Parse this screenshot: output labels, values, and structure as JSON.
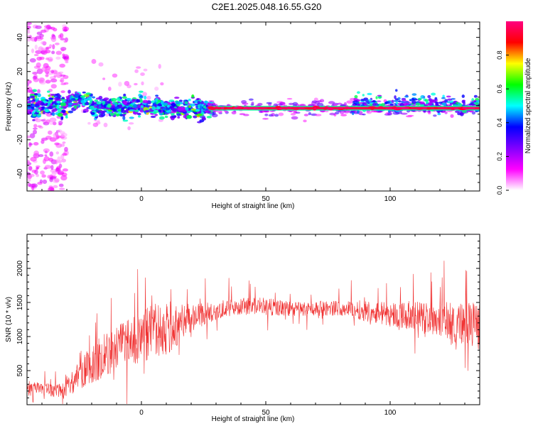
{
  "figure": {
    "title": "C2E1.2025.048.16.55.G20"
  },
  "colors": {
    "snr_line": "#f03030",
    "axes": "#000000",
    "background": "#ffffff"
  },
  "chart_data": [
    {
      "type": "heatmap",
      "xlabel": "Height of straight line (km)",
      "ylabel": "Frequency (Hz)",
      "xlim": [
        -46,
        136
      ],
      "ylim": [
        -50,
        49
      ],
      "xticks": [
        0,
        50,
        100
      ],
      "yticks": [
        -40,
        -20,
        0,
        20,
        40
      ],
      "colorbar": {
        "label": "Normalized spectral amplitude",
        "range": [
          0,
          1
        ],
        "ticks": [
          "0.0",
          "0.2",
          "0.4",
          "0.6",
          "0.8"
        ],
        "colormap": [
          "#ffffff",
          "#ff00ff",
          "#8000ff",
          "#0000ff",
          "#00ffff",
          "#00ff00",
          "#ffff00",
          "#ff0000",
          "#ff0080"
        ]
      },
      "ridge": {
        "frequency_hz": -1.5,
        "x_start_km": 27,
        "x_end_km": 136,
        "amplitude": 0.95
      }
    },
    {
      "type": "line",
      "xlabel": "Height of straight line (km)",
      "ylabel": "SNR (10 * v/v)",
      "xlim": [
        -46,
        136
      ],
      "ylim": [
        0,
        2500
      ],
      "xticks": [
        0,
        50,
        100
      ],
      "yticks": [
        500,
        1000,
        1500,
        2000
      ],
      "series": [
        {
          "profile_x": [
            -46,
            -40,
            -35,
            -30,
            -25,
            -20,
            -15,
            -10,
            -5,
            0,
            5,
            10,
            15,
            20,
            25,
            30,
            35,
            40,
            45,
            50,
            60,
            70,
            80,
            90,
            100,
            110,
            120,
            130,
            136
          ],
          "profile_mean": [
            220,
            240,
            200,
            250,
            420,
            620,
            720,
            830,
            900,
            980,
            1050,
            1120,
            1180,
            1260,
            1320,
            1380,
            1420,
            1440,
            1450,
            1440,
            1400,
            1410,
            1420,
            1380,
            1330,
            1300,
            1260,
            1180,
            1150
          ],
          "profile_spread": [
            120,
            110,
            110,
            150,
            250,
            380,
            380,
            400,
            420,
            480,
            500,
            480,
            380,
            260,
            200,
            160,
            150,
            150,
            150,
            150,
            130,
            130,
            130,
            180,
            220,
            260,
            300,
            380,
            400
          ]
        }
      ]
    }
  ]
}
